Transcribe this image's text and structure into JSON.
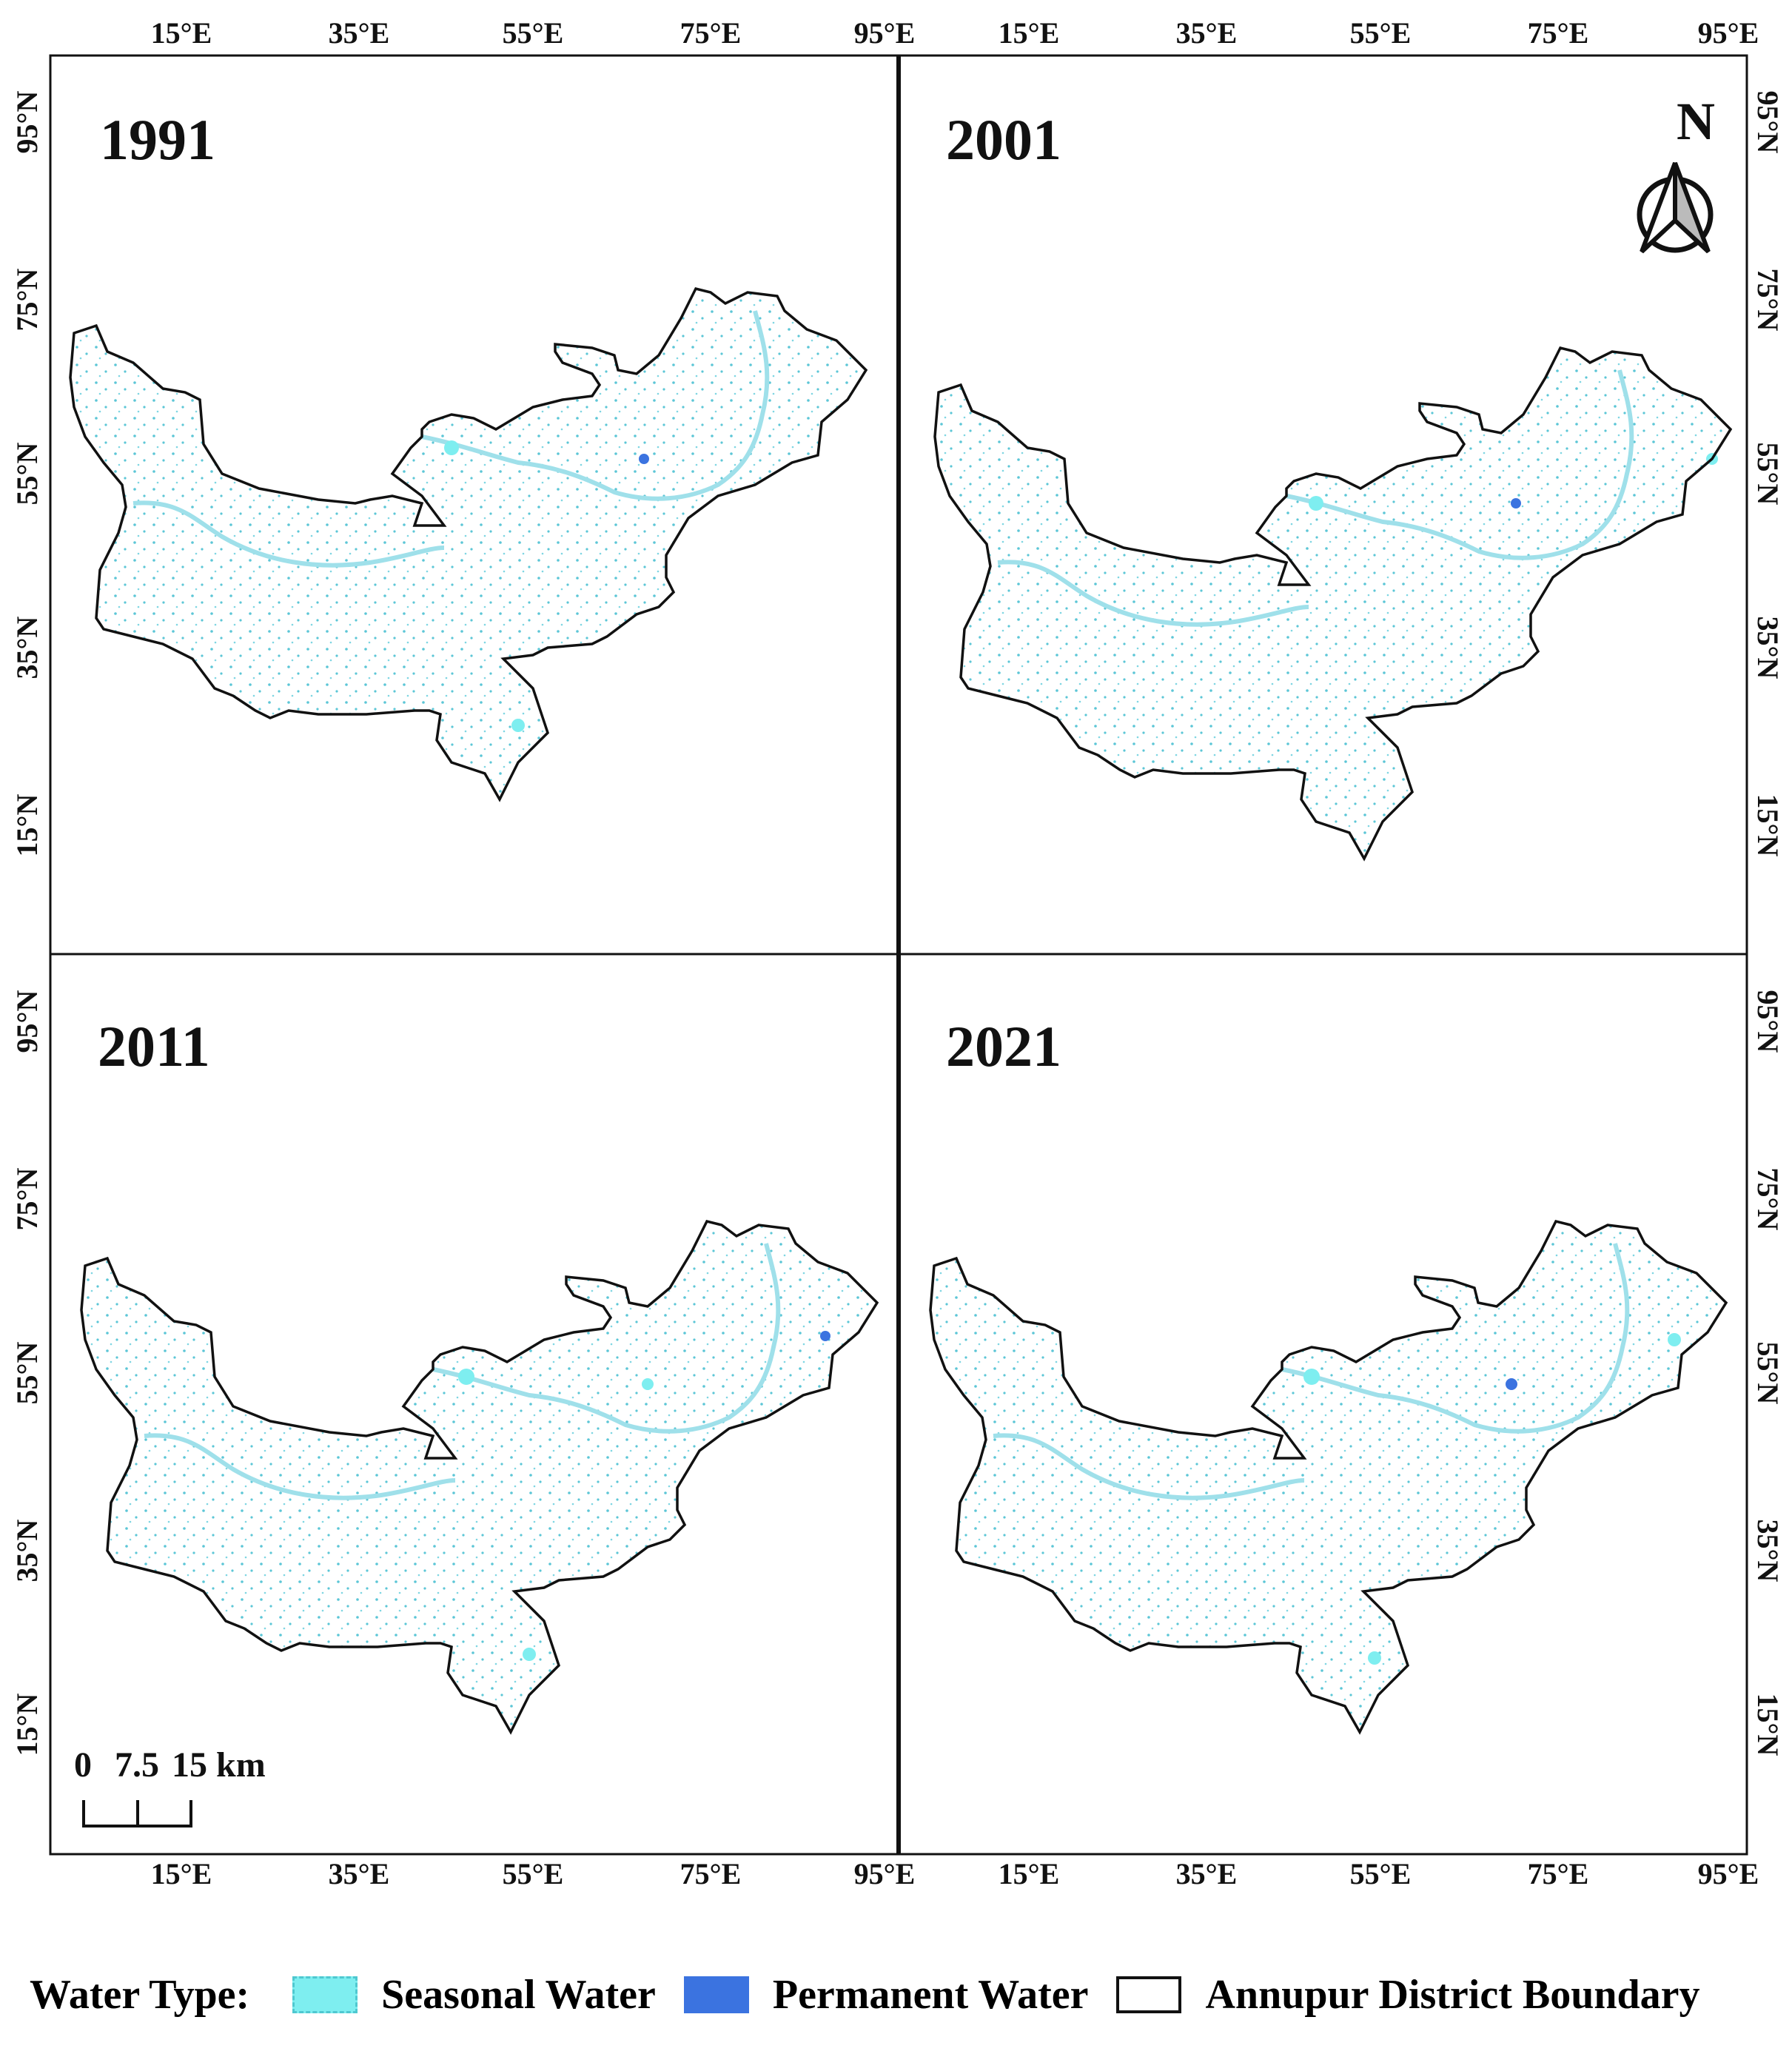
{
  "figure": {
    "panels": [
      {
        "year": "1991"
      },
      {
        "year": "2001"
      },
      {
        "year": "2011"
      },
      {
        "year": "2021"
      }
    ],
    "x_tick_labels": [
      "15°E",
      "35°E",
      "55°E",
      "75°E",
      "95°E"
    ],
    "y_tick_labels": [
      "95°N",
      "75°N",
      "55°N",
      "35°N",
      "15°N"
    ],
    "north_arrow": {
      "label": "N",
      "icon": "north-arrow-icon"
    },
    "scale_bar": {
      "labels": [
        "0",
        "7.5",
        "15 km"
      ]
    }
  },
  "legend": {
    "title": "Water Type:",
    "items": [
      {
        "label": "Seasonal Water",
        "color": "#7eeef0",
        "border": "#4fc8d0"
      },
      {
        "label": "Permanent Water",
        "color": "#3b73e0",
        "border": "#3b73e0"
      },
      {
        "label": "Annupur District Boundary",
        "color": "#ffffff",
        "border": "#111111"
      }
    ]
  },
  "colors": {
    "seasonal": "#7eeef0",
    "permanent": "#3b73e0",
    "river": "#9fe0ea",
    "dot": "#5cc6d6",
    "boundary": "#111111"
  }
}
